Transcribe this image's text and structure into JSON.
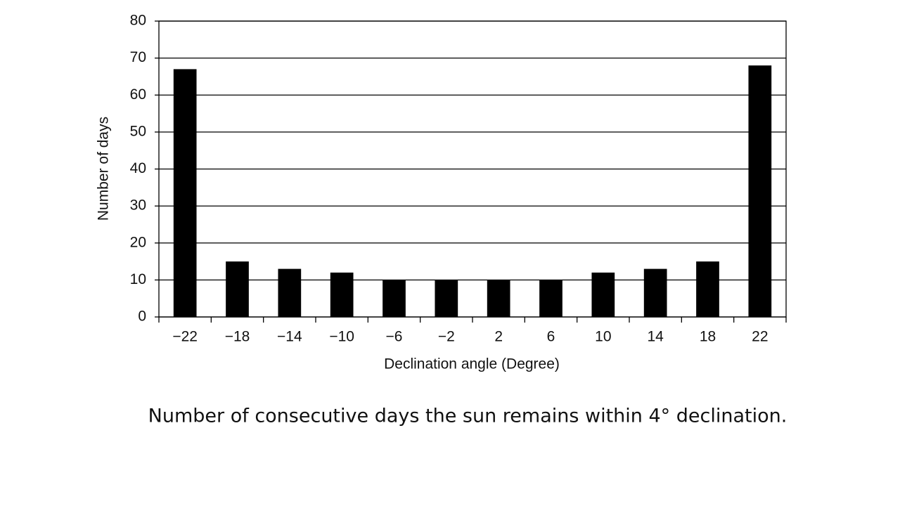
{
  "chart_data": {
    "type": "bar",
    "categories": [
      "−22",
      "−18",
      "−14",
      "−10",
      "−6",
      "−2",
      "2",
      "6",
      "10",
      "14",
      "18",
      "22"
    ],
    "values": [
      67,
      15,
      13,
      12,
      10,
      10,
      10,
      10,
      12,
      13,
      15,
      68
    ],
    "color": "#000000",
    "ylim": [
      0,
      80
    ],
    "yticks": [
      0,
      10,
      20,
      30,
      40,
      50,
      60,
      70,
      80
    ],
    "grid": true,
    "y_label": "Number of days",
    "x_label": "Declination angle (Degree)",
    "caption": "Number of consecutive days the sun remains within 4° declination."
  }
}
